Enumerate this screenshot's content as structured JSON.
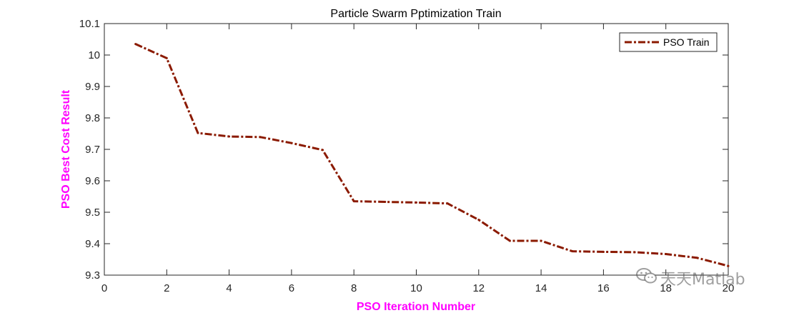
{
  "chart_data": {
    "type": "line",
    "title": "Particle Swarm Pptimization Train",
    "xlabel": "PSO Iteration Number",
    "ylabel": "PSO Best Cost Result",
    "xlim": [
      0,
      20
    ],
    "ylim": [
      9.3,
      10.1
    ],
    "xticks": [
      "0",
      "2",
      "4",
      "6",
      "8",
      "10",
      "12",
      "14",
      "16",
      "18",
      "20"
    ],
    "yticks": [
      "9.3",
      "9.4",
      "9.5",
      "9.6",
      "9.7",
      "9.8",
      "9.9",
      "10",
      "10.1"
    ],
    "legend_position": "top-right",
    "series": [
      {
        "name": "PSO Train",
        "color": "#8b1a00",
        "x": [
          1,
          2,
          3,
          4,
          5,
          6,
          7,
          8,
          9,
          10,
          11,
          12,
          13,
          14,
          15,
          16,
          17,
          18,
          19,
          20
        ],
        "values": [
          10.035,
          9.99,
          9.752,
          9.741,
          9.739,
          9.72,
          9.698,
          9.535,
          9.533,
          9.531,
          9.528,
          9.476,
          9.409,
          9.409,
          9.376,
          9.374,
          9.373,
          9.367,
          9.355,
          9.329
        ]
      }
    ]
  },
  "colors": {
    "axis_label": "#ff00ff",
    "line": "#8b1a00"
  },
  "watermark": {
    "text": "天天Matlab",
    "icon": "wechat-icon"
  }
}
